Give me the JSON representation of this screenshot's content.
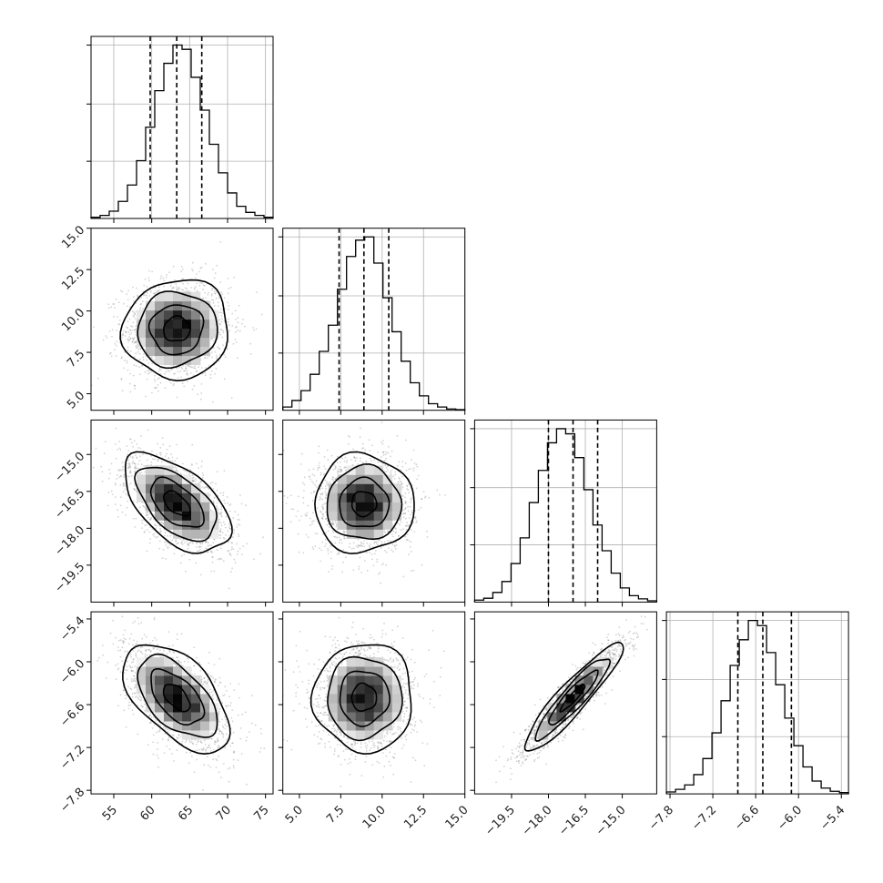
{
  "chart_data": {
    "type": "corner",
    "grid_on_diagonal": true,
    "colors": {
      "ink": "#000000",
      "grid": "#b0b0b0",
      "scatter": "#808080"
    },
    "parameters": [
      {
        "range": [
          52,
          76
        ],
        "ticks": [
          55,
          60,
          65,
          70,
          75
        ],
        "tick_labels": [
          "55",
          "60",
          "65",
          "70",
          "75"
        ],
        "quantiles": [
          59.8,
          63.3,
          66.6
        ],
        "mean": 63.3,
        "sd": 3.5
      },
      {
        "range": [
          4,
          15
        ],
        "ticks": [
          5,
          7.5,
          10,
          12.5,
          15
        ],
        "tick_labels": [
          "5.0",
          "7.5",
          "10.0",
          "12.5",
          "15.0"
        ],
        "quantiles": [
          7.4,
          8.9,
          10.4
        ],
        "mean": 8.9,
        "sd": 1.5
      },
      {
        "range": [
          -21,
          -13.6
        ],
        "ticks": [
          -19.5,
          -18,
          -16.5,
          -15
        ],
        "tick_labels": [
          "−19.5",
          "−18.0",
          "−16.5",
          "−15.0"
        ],
        "quantiles": [
          -18.0,
          -17.0,
          -16.0
        ],
        "mean": -17.0,
        "sd": 1.0
      },
      {
        "range": [
          -7.85,
          -5.3
        ],
        "ticks": [
          -7.8,
          -7.2,
          -6.6,
          -6.0,
          -5.4
        ],
        "tick_labels": [
          "−7.8",
          "−7.2",
          "−6.6",
          "−6.0",
          "−5.4"
        ],
        "quantiles": [
          -6.85,
          -6.5,
          -6.1
        ],
        "mean": -6.5,
        "sd": 0.38
      }
    ],
    "diagonal_histograms": [
      {
        "bin_edges": [
          52,
          53.2,
          54.4,
          55.6,
          56.8,
          58,
          59.2,
          60.4,
          61.6,
          62.8,
          64,
          65.2,
          66.4,
          67.6,
          68.8,
          70,
          71.2,
          72.4,
          73.6,
          74.8,
          76
        ],
        "counts": [
          2,
          5,
          12,
          28,
          55,
          95,
          150,
          210,
          255,
          285,
          278,
          232,
          178,
          122,
          75,
          42,
          20,
          10,
          5,
          2
        ]
      },
      {
        "bin_edges": [
          4,
          4.55,
          5.1,
          5.65,
          6.2,
          6.75,
          7.3,
          7.85,
          8.4,
          8.95,
          9.5,
          10.05,
          10.6,
          11.15,
          11.7,
          12.25,
          12.8,
          13.35,
          13.9,
          14.45,
          15
        ],
        "counts": [
          5,
          15,
          30,
          55,
          90,
          130,
          185,
          235,
          260,
          265,
          225,
          172,
          120,
          75,
          42,
          22,
          10,
          5,
          2,
          1
        ]
      },
      {
        "bin_edges": [
          -21,
          -20.63,
          -20.26,
          -19.89,
          -19.52,
          -19.15,
          -18.78,
          -18.41,
          -18.04,
          -17.67,
          -17.3,
          -16.93,
          -16.56,
          -16.19,
          -15.82,
          -15.45,
          -15.08,
          -14.71,
          -14.34,
          -13.97,
          -13.6
        ],
        "counts": [
          3,
          6,
          15,
          32,
          60,
          100,
          155,
          205,
          248,
          270,
          262,
          225,
          175,
          120,
          80,
          45,
          22,
          10,
          5,
          2
        ]
      },
      {
        "bin_edges": [
          -7.85,
          -7.7225,
          -7.595,
          -7.4675,
          -7.34,
          -7.2125,
          -7.085,
          -6.9575,
          -6.83,
          -6.7025,
          -6.575,
          -6.4475,
          -6.32,
          -6.1925,
          -6.065,
          -5.9375,
          -5.81,
          -5.6825,
          -5.555,
          -5.4275,
          -5.3
        ],
        "counts": [
          3,
          7,
          14,
          30,
          55,
          95,
          145,
          200,
          240,
          270,
          262,
          220,
          170,
          118,
          75,
          42,
          20,
          9,
          4,
          2
        ]
      }
    ],
    "pair_correlations": [
      {
        "row": 1,
        "col": 0,
        "rho": 0.05
      },
      {
        "row": 2,
        "col": 0,
        "rho": -0.55
      },
      {
        "row": 2,
        "col": 1,
        "rho": 0.0
      },
      {
        "row": 3,
        "col": 0,
        "rho": -0.55
      },
      {
        "row": 3,
        "col": 1,
        "rho": 0.0
      },
      {
        "row": 3,
        "col": 2,
        "rho": 0.92
      }
    ],
    "contour_levels_sigma": [
      0.5,
      1.0,
      1.5,
      2.0
    ]
  }
}
